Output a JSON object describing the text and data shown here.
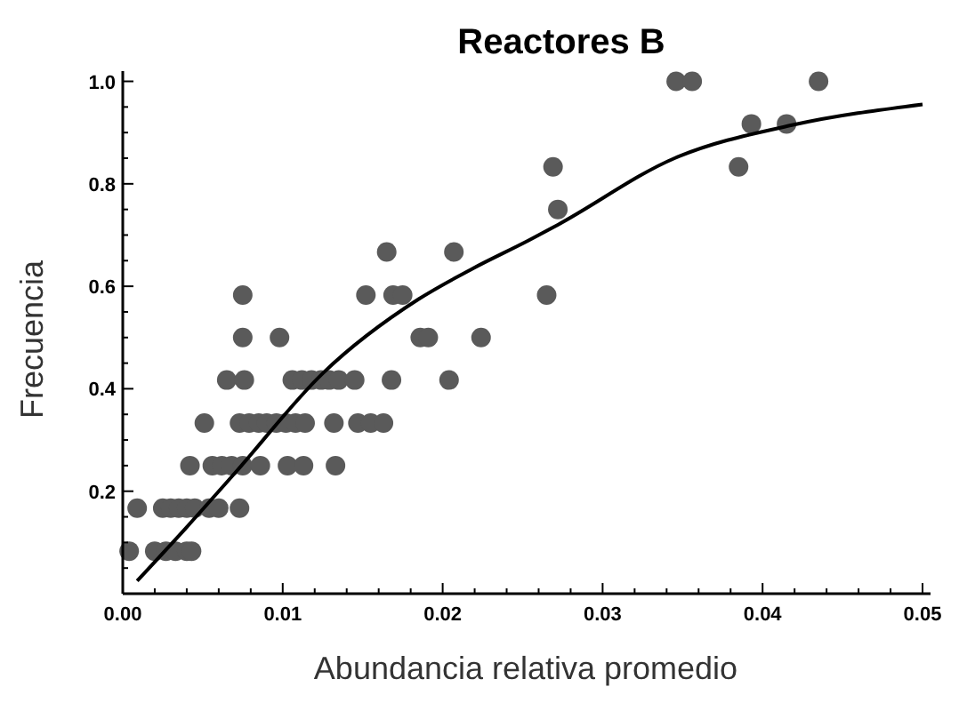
{
  "chart_data": {
    "type": "scatter",
    "title": "Reactores B",
    "xlabel": "Abundancia relativa promedio",
    "ylabel": "Frecuencia",
    "xlim": [
      0,
      0.0505
    ],
    "ylim": [
      0,
      1.02
    ],
    "xticks": [
      {
        "value": 0,
        "label": "0.00"
      },
      {
        "value": 0.002,
        "label": null
      },
      {
        "value": 0.004,
        "label": null
      },
      {
        "value": 0.006,
        "label": null
      },
      {
        "value": 0.008,
        "label": null
      },
      {
        "value": 0.01,
        "label": "0.01"
      },
      {
        "value": 0.012,
        "label": null
      },
      {
        "value": 0.014,
        "label": null
      },
      {
        "value": 0.016,
        "label": null
      },
      {
        "value": 0.018,
        "label": null
      },
      {
        "value": 0.02,
        "label": "0.02"
      },
      {
        "value": 0.022,
        "label": null
      },
      {
        "value": 0.024,
        "label": null
      },
      {
        "value": 0.026,
        "label": null
      },
      {
        "value": 0.028,
        "label": null
      },
      {
        "value": 0.03,
        "label": "0.03"
      },
      {
        "value": 0.032,
        "label": null
      },
      {
        "value": 0.034,
        "label": null
      },
      {
        "value": 0.036,
        "label": null
      },
      {
        "value": 0.038,
        "label": null
      },
      {
        "value": 0.04,
        "label": "0.04"
      },
      {
        "value": 0.042,
        "label": null
      },
      {
        "value": 0.044,
        "label": null
      },
      {
        "value": 0.046,
        "label": null
      },
      {
        "value": 0.048,
        "label": null
      },
      {
        "value": 0.05,
        "label": "0.05"
      }
    ],
    "yticks": [
      {
        "value": 0.05,
        "label": null
      },
      {
        "value": 0.1,
        "label": null
      },
      {
        "value": 0.15,
        "label": null
      },
      0.2,
      {
        "value": 0.25,
        "label": null
      },
      {
        "value": 0.3,
        "label": null
      },
      {
        "value": 0.35,
        "label": null
      },
      0.4,
      {
        "value": 0.45,
        "label": null
      },
      {
        "value": 0.5,
        "label": null
      },
      {
        "value": 0.55,
        "label": null
      },
      0.6,
      {
        "value": 0.65,
        "label": null
      },
      {
        "value": 0.7,
        "label": null
      },
      {
        "value": 0.75,
        "label": null
      },
      0.8,
      {
        "value": 0.85,
        "label": null
      },
      {
        "value": 0.9,
        "label": null
      },
      {
        "value": 0.95,
        "label": null
      },
      {
        "value": 1,
        "label": "1.0"
      }
    ],
    "grid": false,
    "marker": "circle",
    "series": [
      {
        "color": "#5a5a5a",
        "x": [
          0.0004,
          0.002,
          0.0027,
          0.0033,
          0.004,
          0.0043,
          0.0009,
          0.0025,
          0.003,
          0.0035,
          0.004,
          0.0045,
          0.0054,
          0.006,
          0.0073,
          0.0042,
          0.0056,
          0.0062,
          0.0068,
          0.0075,
          0.0086,
          0.0103,
          0.0113,
          0.0133,
          0.0051,
          0.0073,
          0.0079,
          0.0085,
          0.009,
          0.0096,
          0.0102,
          0.0108,
          0.0114,
          0.0132,
          0.0147,
          0.0155,
          0.0163,
          0.0065,
          0.0076,
          0.0106,
          0.0112,
          0.0118,
          0.0124,
          0.0129,
          0.0135,
          0.0145,
          0.0168,
          0.0204,
          0.0075,
          0.0098,
          0.0186,
          0.0191,
          0.0224,
          0.0075,
          0.0152,
          0.0169,
          0.0175,
          0.0265,
          0.0165,
          0.0207,
          0.0272,
          0.0269,
          0.0385,
          0.0393,
          0.0415,
          0.0346,
          0.0356,
          0.0435
        ],
        "values": [
          0.083,
          0.083,
          0.083,
          0.083,
          0.083,
          0.083,
          0.167,
          0.167,
          0.167,
          0.167,
          0.167,
          0.167,
          0.167,
          0.167,
          0.167,
          0.25,
          0.25,
          0.25,
          0.25,
          0.25,
          0.25,
          0.25,
          0.25,
          0.25,
          0.333,
          0.333,
          0.333,
          0.333,
          0.333,
          0.333,
          0.333,
          0.333,
          0.333,
          0.333,
          0.333,
          0.333,
          0.333,
          0.417,
          0.417,
          0.417,
          0.417,
          0.417,
          0.417,
          0.417,
          0.417,
          0.417,
          0.417,
          0.417,
          0.5,
          0.5,
          0.5,
          0.5,
          0.5,
          0.583,
          0.583,
          0.583,
          0.583,
          0.583,
          0.667,
          0.667,
          0.75,
          0.833,
          0.833,
          0.917,
          0.917,
          1,
          1,
          1
        ]
      },
      {
        "type": "line",
        "color": "#000000",
        "marker": "none",
        "line_style": "solid",
        "x": [
          0.0009,
          0.004,
          0.007,
          0.0125,
          0.0185,
          0.0219,
          0.0254,
          0.0272,
          0.0345,
          0.0419,
          0.05
        ],
        "values": [
          0.025,
          0.13,
          0.235,
          0.43,
          0.575,
          0.635,
          0.69,
          0.72,
          0.85,
          0.915,
          0.955
        ]
      }
    ]
  }
}
